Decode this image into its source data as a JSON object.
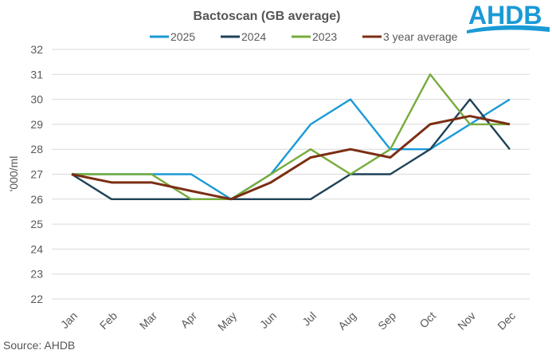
{
  "logo_text": "AHDB",
  "source": "Source: AHDB",
  "chart_data": {
    "type": "line",
    "title": "Bactoscan (GB average)",
    "ylabel": "'000/ml",
    "xlabel": "",
    "ylim": [
      22,
      32
    ],
    "yticks": [
      22,
      23,
      24,
      25,
      26,
      27,
      28,
      29,
      30,
      31,
      32
    ],
    "grid": true,
    "legend": "top",
    "categories": [
      "Jan",
      "Feb",
      "Mar",
      "Apr",
      "May",
      "Jun",
      "Jul",
      "Aug",
      "Sep",
      "Oct",
      "Nov",
      "Dec"
    ],
    "series": [
      {
        "name": "2025",
        "color": "#1a9ad6",
        "values": [
          27,
          27,
          27,
          27,
          26,
          27,
          29,
          30,
          28,
          28,
          29,
          30
        ]
      },
      {
        "name": "2024",
        "color": "#1f4257",
        "values": [
          27,
          26,
          26,
          26,
          26,
          26,
          26,
          27,
          27,
          28,
          30,
          28
        ]
      },
      {
        "name": "2023",
        "color": "#77ac3c",
        "values": [
          27,
          27,
          27,
          26,
          26,
          27,
          28,
          27,
          28,
          31,
          29,
          29
        ]
      },
      {
        "name": "3 year average",
        "color": "#7b2e12",
        "values": [
          27,
          26.67,
          26.67,
          26.33,
          26,
          26.67,
          27.67,
          28,
          27.67,
          29,
          29.33,
          29
        ]
      }
    ]
  }
}
